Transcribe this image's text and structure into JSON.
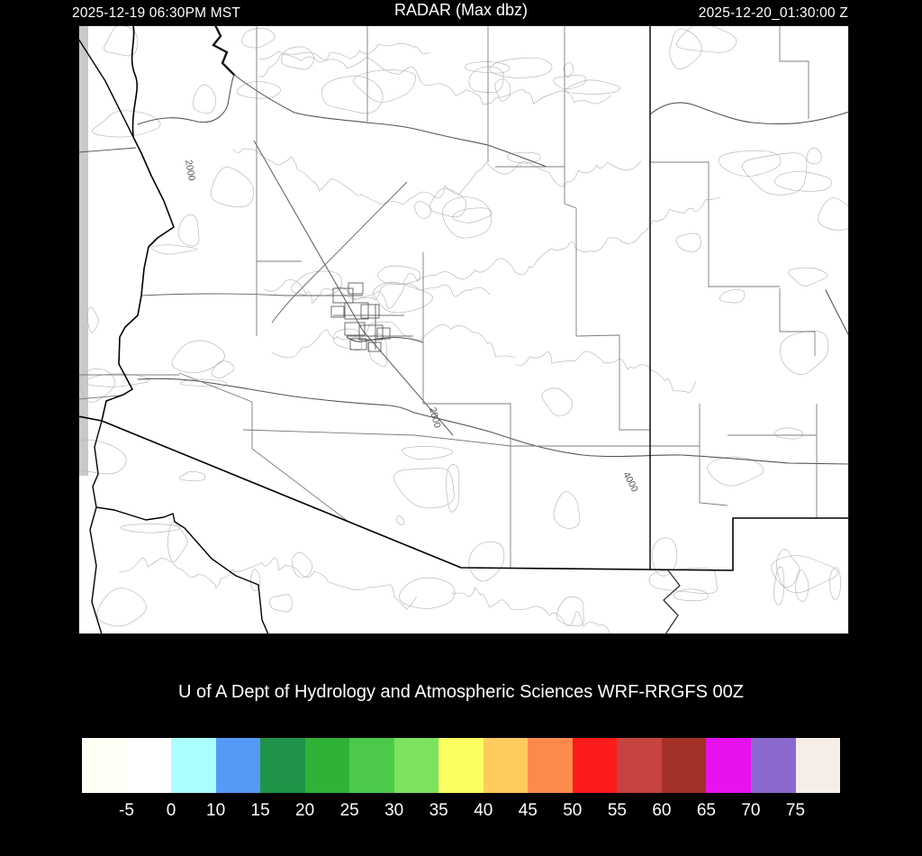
{
  "header": {
    "left_timestamp": "2025-12-19 06:30PM MST",
    "title": "RADAR (Max dbz)",
    "right_timestamp": "2025-12-20_01:30:00 Z"
  },
  "map": {
    "region": "Arizona",
    "contour_labels": [
      {
        "text": "2000"
      },
      {
        "text": "2000"
      },
      {
        "text": "4000"
      }
    ]
  },
  "footer": {
    "credit": "U of A Dept of Hydrology and Atmospheric Sciences WRF-RRGFS 00Z"
  },
  "colorbar": {
    "tick_labels": [
      "-5",
      "0",
      "10",
      "15",
      "20",
      "25",
      "30",
      "35",
      "40",
      "45",
      "50",
      "55",
      "60",
      "65",
      "70",
      "75"
    ],
    "segment_colors": [
      "#fffff6",
      "#ffffff",
      "#a9ffff",
      "#569af7",
      "#1f9347",
      "#30b236",
      "#4cc94b",
      "#7de25d",
      "#fbff62",
      "#ffcb5e",
      "#fc8b4b",
      "#fb1b1b",
      "#c64340",
      "#a33128",
      "#e712ef",
      "#8a68ce",
      "#f6ede6"
    ]
  }
}
